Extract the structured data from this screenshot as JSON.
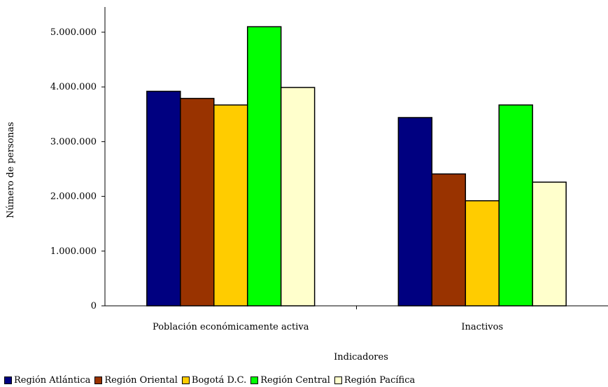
{
  "chart_data": {
    "type": "bar",
    "categories": [
      "Población económicamente activa",
      "Inactivos"
    ],
    "series": [
      {
        "name": "Región Atlántica",
        "color": "#000080",
        "values": [
          3920000,
          3440000
        ]
      },
      {
        "name": "Región Oriental",
        "color": "#993300",
        "values": [
          3790000,
          2410000
        ]
      },
      {
        "name": "Bogotá D.C.",
        "color": "#FFCC00",
        "values": [
          3670000,
          1920000
        ]
      },
      {
        "name": "Región Central",
        "color": "#00FF00",
        "values": [
          5100000,
          3670000
        ]
      },
      {
        "name": "Región Pacífica",
        "color": "#FFFFCC",
        "values": [
          3990000,
          2260000
        ]
      }
    ],
    "xlabel": "Indicadores",
    "ylabel": "Número de personas",
    "ylim": [
      0,
      5000000
    ],
    "yticks": [
      0,
      1000000,
      2000000,
      3000000,
      4000000,
      5000000
    ],
    "ytick_labels": [
      "0",
      "1.000.000",
      "2.000.000",
      "3.000.000",
      "4.000.000",
      "5.000.000"
    ],
    "grid": false,
    "legend_position": "bottom"
  }
}
